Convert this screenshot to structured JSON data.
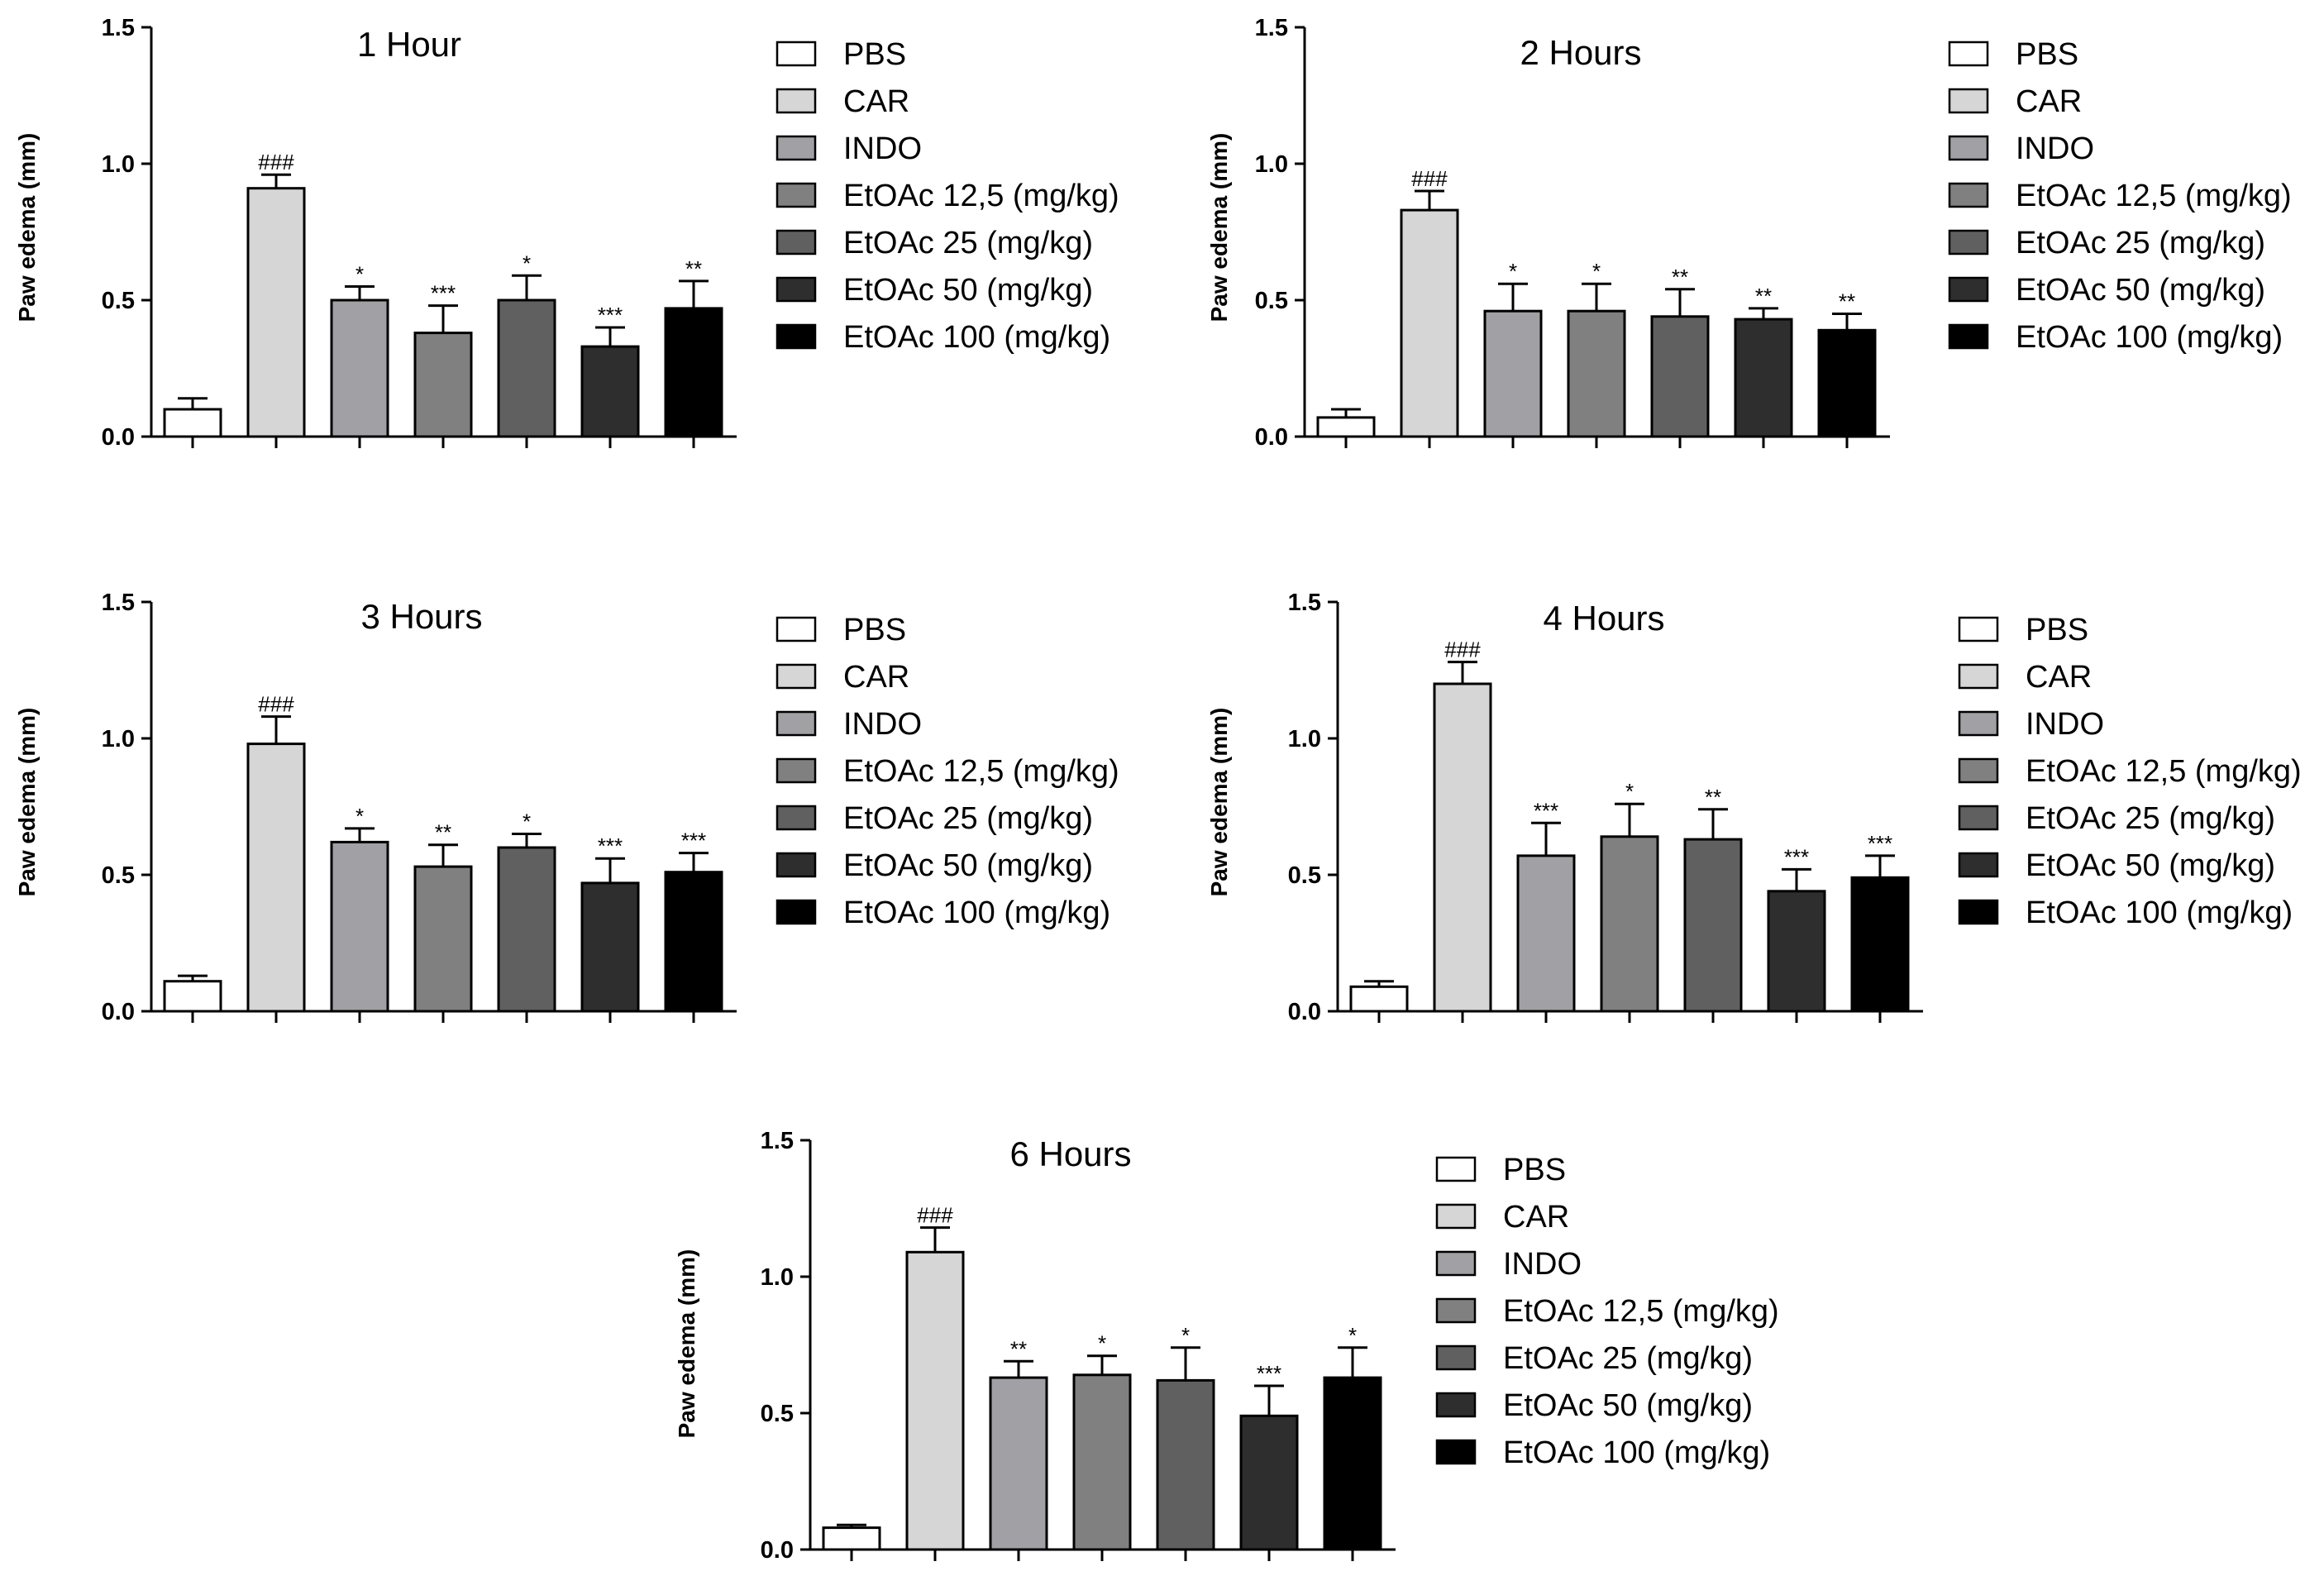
{
  "legend": {
    "entries": [
      "PBS",
      "CAR",
      "INDO",
      "EtOAc 12,5 (mg/kg)",
      "EtOAc 25 (mg/kg)",
      "EtOAc 50 (mg/kg)",
      "EtOAc 100 (mg/kg)"
    ],
    "colors": [
      "#ffffff",
      "#d6d6d6",
      "#a0a0a5",
      "#808080",
      "#606060",
      "#2e2e2e",
      "#000000"
    ]
  },
  "chart_data": [
    {
      "type": "bar",
      "title": "1 Hour",
      "ylabel": "Paw edema (mm)",
      "xlabel": "",
      "ylim": [
        0,
        1.5
      ],
      "yticks": [
        "0.0",
        "0.5",
        "1.0",
        "1.5"
      ],
      "categories": [
        "PBS",
        "CAR",
        "INDO",
        "EtOAc 12,5 (mg/kg)",
        "EtOAc 25 (mg/kg)",
        "EtOAc 50 (mg/kg)",
        "EtOAc 100 (mg/kg)"
      ],
      "values": [
        0.1,
        0.91,
        0.5,
        0.38,
        0.5,
        0.33,
        0.47
      ],
      "errors": [
        0.04,
        0.05,
        0.05,
        0.1,
        0.09,
        0.07,
        0.1
      ],
      "significance": [
        "",
        "###",
        "*",
        "***",
        "*",
        "***",
        "**"
      ]
    },
    {
      "type": "bar",
      "title": "2 Hours",
      "ylabel": "Paw edema (mm)",
      "xlabel": "",
      "ylim": [
        0,
        1.5
      ],
      "yticks": [
        "0.0",
        "0.5",
        "1.0",
        "1.5"
      ],
      "categories": [
        "PBS",
        "CAR",
        "INDO",
        "EtOAc 12,5 (mg/kg)",
        "EtOAc 25 (mg/kg)",
        "EtOAc 50 (mg/kg)",
        "EtOAc 100 (mg/kg)"
      ],
      "values": [
        0.07,
        0.83,
        0.46,
        0.46,
        0.44,
        0.43,
        0.39
      ],
      "errors": [
        0.03,
        0.07,
        0.1,
        0.1,
        0.1,
        0.04,
        0.06
      ],
      "significance": [
        "",
        "###",
        "*",
        "*",
        "**",
        "**",
        "**"
      ]
    },
    {
      "type": "bar",
      "title": "3 Hours",
      "ylabel": "Paw edema (mm)",
      "xlabel": "",
      "ylim": [
        0,
        1.5
      ],
      "yticks": [
        "0.0",
        "0.5",
        "1.0",
        "1.5"
      ],
      "categories": [
        "PBS",
        "CAR",
        "INDO",
        "EtOAc 12,5 (mg/kg)",
        "EtOAc 25 (mg/kg)",
        "EtOAc 50 (mg/kg)",
        "EtOAc 100 (mg/kg)"
      ],
      "values": [
        0.11,
        0.98,
        0.62,
        0.53,
        0.6,
        0.47,
        0.51
      ],
      "errors": [
        0.02,
        0.1,
        0.05,
        0.08,
        0.05,
        0.09,
        0.07
      ],
      "significance": [
        "",
        "###",
        "*",
        "**",
        "*",
        "***",
        "***"
      ]
    },
    {
      "type": "bar",
      "title": "4 Hours",
      "ylabel": "Paw edema (mm)",
      "xlabel": "",
      "ylim": [
        0,
        1.5
      ],
      "yticks": [
        "0.0",
        "0.5",
        "1.0",
        "1.5"
      ],
      "categories": [
        "PBS",
        "CAR",
        "INDO",
        "EtOAc 12,5 (mg/kg)",
        "EtOAc 25 (mg/kg)",
        "EtOAc 50 (mg/kg)",
        "EtOAc 100 (mg/kg)"
      ],
      "values": [
        0.09,
        1.2,
        0.57,
        0.64,
        0.63,
        0.44,
        0.49
      ],
      "errors": [
        0.02,
        0.08,
        0.12,
        0.12,
        0.11,
        0.08,
        0.08
      ],
      "significance": [
        "",
        "###",
        "***",
        "*",
        "**",
        "***",
        "***"
      ]
    },
    {
      "type": "bar",
      "title": "6 Hours",
      "ylabel": "Paw edema (mm)",
      "xlabel": "",
      "ylim": [
        0,
        1.5
      ],
      "yticks": [
        "0.0",
        "0.5",
        "1.0",
        "1.5"
      ],
      "categories": [
        "PBS",
        "CAR",
        "INDO",
        "EtOAc 12,5 (mg/kg)",
        "EtOAc 25 (mg/kg)",
        "EtOAc 50 (mg/kg)",
        "EtOAc 100 (mg/kg)"
      ],
      "values": [
        0.08,
        1.09,
        0.63,
        0.64,
        0.62,
        0.49,
        0.63
      ],
      "errors": [
        0.01,
        0.09,
        0.06,
        0.07,
        0.12,
        0.11,
        0.11
      ],
      "significance": [
        "",
        "###",
        "**",
        "*",
        "*",
        "***",
        "*"
      ]
    }
  ]
}
